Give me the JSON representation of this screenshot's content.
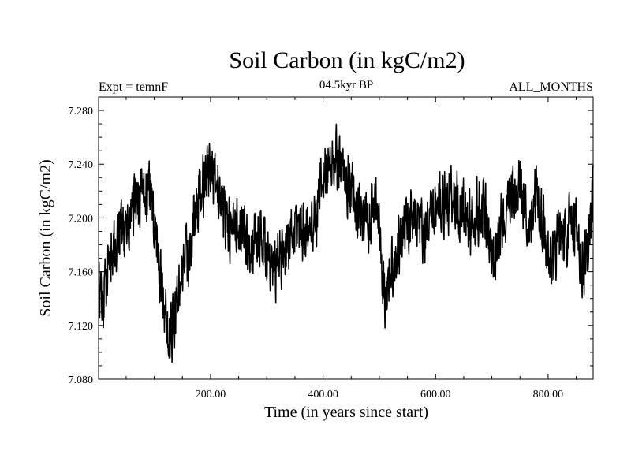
{
  "chart_data": {
    "type": "line",
    "title": "Soil Carbon (in kgC/m2)",
    "subtitle": "04.5kyr BP",
    "left_label": "Expt = temnF",
    "right_label": "ALL_MONTHS",
    "xlabel": "Time (in years since start)",
    "ylabel": "Soil Carbon (in kgC/m2)",
    "xlim": [
      1,
      880
    ],
    "ylim": [
      7.08,
      7.29
    ],
    "x_ticks": [
      200,
      400,
      600,
      800
    ],
    "x_tick_labels": [
      "200.00",
      "400.00",
      "600.00",
      "800.00"
    ],
    "y_ticks": [
      7.08,
      7.12,
      7.16,
      7.2,
      7.24,
      7.28
    ],
    "y_tick_labels": [
      "7.080",
      "7.120",
      "7.160",
      "7.200",
      "7.240",
      "7.280"
    ],
    "grid": false,
    "line_color": "#000000",
    "series": [
      {
        "name": "Soil Carbon",
        "x": [
          0,
          10,
          20,
          30,
          40,
          50,
          60,
          70,
          80,
          90,
          100,
          110,
          120,
          130,
          140,
          150,
          160,
          170,
          180,
          190,
          200,
          210,
          220,
          230,
          240,
          250,
          260,
          270,
          280,
          290,
          300,
          310,
          320,
          330,
          340,
          350,
          360,
          370,
          380,
          390,
          400,
          410,
          420,
          430,
          440,
          450,
          460,
          470,
          480,
          490,
          500,
          510,
          520,
          530,
          540,
          550,
          560,
          570,
          580,
          590,
          600,
          610,
          620,
          630,
          640,
          650,
          660,
          670,
          680,
          690,
          700,
          710,
          720,
          730,
          740,
          750,
          760,
          770,
          780,
          790,
          800,
          810,
          820,
          830,
          840,
          850,
          860,
          870,
          880
        ],
        "values": [
          7.15,
          7.13,
          7.18,
          7.175,
          7.19,
          7.185,
          7.205,
          7.21,
          7.215,
          7.22,
          7.2,
          7.15,
          7.13,
          7.11,
          7.135,
          7.165,
          7.17,
          7.195,
          7.215,
          7.225,
          7.235,
          7.23,
          7.21,
          7.195,
          7.185,
          7.2,
          7.19,
          7.175,
          7.18,
          7.185,
          7.175,
          7.15,
          7.17,
          7.175,
          7.185,
          7.19,
          7.195,
          7.19,
          7.195,
          7.205,
          7.23,
          7.24,
          7.245,
          7.235,
          7.23,
          7.225,
          7.21,
          7.2,
          7.19,
          7.215,
          7.195,
          7.14,
          7.16,
          7.175,
          7.185,
          7.195,
          7.205,
          7.2,
          7.185,
          7.195,
          7.205,
          7.215,
          7.21,
          7.22,
          7.21,
          7.205,
          7.195,
          7.2,
          7.21,
          7.2,
          7.16,
          7.19,
          7.2,
          7.21,
          7.215,
          7.22,
          7.21,
          7.2,
          7.22,
          7.2,
          7.175,
          7.17,
          7.19,
          7.18,
          7.195,
          7.19,
          7.16,
          7.18,
          7.215
        ]
      }
    ]
  }
}
